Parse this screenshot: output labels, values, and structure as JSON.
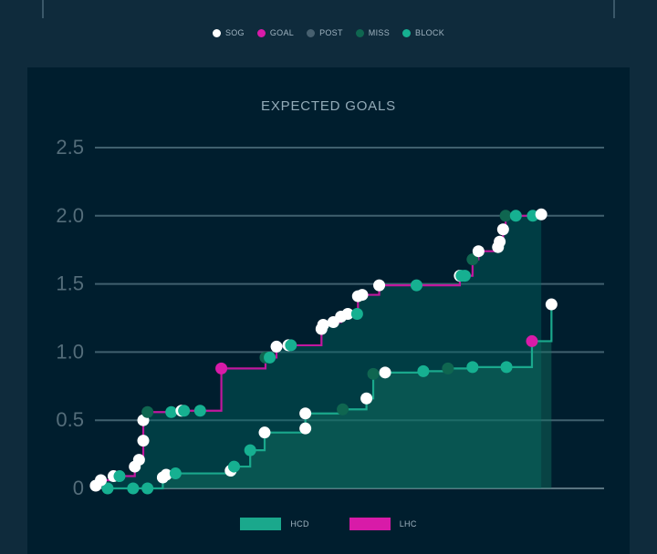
{
  "legend_top": [
    {
      "label": "SOG",
      "color": "#ffffff",
      "icon": "white-dot-icon"
    },
    {
      "label": "GOAL",
      "color": "#d81ba8",
      "icon": "magenta-dot-icon"
    },
    {
      "label": "POST",
      "color": "#47606f",
      "icon": "gray-dot-icon"
    },
    {
      "label": "MISS",
      "color": "#0f6650",
      "icon": "dark-green-dot-icon"
    },
    {
      "label": "BLOCK",
      "color": "#16b091",
      "icon": "teal-dot-icon"
    }
  ],
  "chart_data": {
    "type": "line",
    "title": "EXPECTED GOALS",
    "xlabel": "",
    "ylabel": "",
    "ylim": [
      0,
      2.5
    ],
    "yticks": [
      "0",
      "0.5",
      "1.0",
      "1.5",
      "2.0",
      "2.5"
    ],
    "xlim": [
      0,
      60
    ],
    "series": [
      {
        "name": "HCD",
        "color": "#1aa88c",
        "points": [
          {
            "x": 1.5,
            "y": 0,
            "type": "BLOCK"
          },
          {
            "x": 4.5,
            "y": 0,
            "type": "BLOCK"
          },
          {
            "x": 6.2,
            "y": 0,
            "type": "BLOCK"
          },
          {
            "x": 8.0,
            "y": 0.08,
            "type": "SOG"
          },
          {
            "x": 8.4,
            "y": 0.1,
            "type": "SOG"
          },
          {
            "x": 9.5,
            "y": 0.11,
            "type": "BLOCK"
          },
          {
            "x": 16.0,
            "y": 0.13,
            "type": "SOG"
          },
          {
            "x": 16.4,
            "y": 0.16,
            "type": "BLOCK"
          },
          {
            "x": 18.3,
            "y": 0.28,
            "type": "BLOCK"
          },
          {
            "x": 20.0,
            "y": 0.41,
            "type": "SOG"
          },
          {
            "x": 24.8,
            "y": 0.44,
            "type": "SOG"
          },
          {
            "x": 24.8,
            "y": 0.55,
            "type": "SOG"
          },
          {
            "x": 29.2,
            "y": 0.58,
            "type": "MISS"
          },
          {
            "x": 32.0,
            "y": 0.66,
            "type": "SOG"
          },
          {
            "x": 32.8,
            "y": 0.84,
            "type": "MISS"
          },
          {
            "x": 34.2,
            "y": 0.85,
            "type": "SOG"
          },
          {
            "x": 38.7,
            "y": 0.86,
            "type": "BLOCK"
          },
          {
            "x": 41.6,
            "y": 0.88,
            "type": "MISS"
          },
          {
            "x": 44.5,
            "y": 0.89,
            "type": "BLOCK"
          },
          {
            "x": 48.5,
            "y": 0.89,
            "type": "BLOCK"
          },
          {
            "x": 51.5,
            "y": 1.08,
            "type": "GOAL"
          },
          {
            "x": 53.8,
            "y": 1.35,
            "type": "SOG"
          }
        ]
      },
      {
        "name": "LHC",
        "color": "#d81ba8",
        "points": [
          {
            "x": 0.1,
            "y": 0.02,
            "type": "SOG"
          },
          {
            "x": 0.7,
            "y": 0.06,
            "type": "SOG"
          },
          {
            "x": 2.2,
            "y": 0.09,
            "type": "SOG"
          },
          {
            "x": 2.9,
            "y": 0.09,
            "type": "BLOCK"
          },
          {
            "x": 4.7,
            "y": 0.16,
            "type": "SOG"
          },
          {
            "x": 5.2,
            "y": 0.21,
            "type": "SOG"
          },
          {
            "x": 5.7,
            "y": 0.35,
            "type": "SOG"
          },
          {
            "x": 5.7,
            "y": 0.5,
            "type": "SOG"
          },
          {
            "x": 6.2,
            "y": 0.56,
            "type": "MISS"
          },
          {
            "x": 9.0,
            "y": 0.56,
            "type": "BLOCK"
          },
          {
            "x": 10.2,
            "y": 0.57,
            "type": "SOG"
          },
          {
            "x": 10.5,
            "y": 0.57,
            "type": "BLOCK"
          },
          {
            "x": 12.4,
            "y": 0.57,
            "type": "BLOCK"
          },
          {
            "x": 14.9,
            "y": 0.88,
            "type": "GOAL"
          },
          {
            "x": 20.1,
            "y": 0.96,
            "type": "MISS"
          },
          {
            "x": 20.6,
            "y": 0.96,
            "type": "BLOCK"
          },
          {
            "x": 21.4,
            "y": 1.04,
            "type": "SOG"
          },
          {
            "x": 22.8,
            "y": 1.05,
            "type": "SOG"
          },
          {
            "x": 23.1,
            "y": 1.05,
            "type": "BLOCK"
          },
          {
            "x": 26.7,
            "y": 1.17,
            "type": "SOG"
          },
          {
            "x": 26.9,
            "y": 1.2,
            "type": "SOG"
          },
          {
            "x": 28.1,
            "y": 1.22,
            "type": "SOG"
          },
          {
            "x": 29.0,
            "y": 1.26,
            "type": "SOG"
          },
          {
            "x": 29.8,
            "y": 1.28,
            "type": "SOG"
          },
          {
            "x": 30.9,
            "y": 1.28,
            "type": "BLOCK"
          },
          {
            "x": 31.0,
            "y": 1.41,
            "type": "SOG"
          },
          {
            "x": 31.5,
            "y": 1.42,
            "type": "SOG"
          },
          {
            "x": 33.5,
            "y": 1.49,
            "type": "SOG"
          },
          {
            "x": 37.9,
            "y": 1.49,
            "type": "BLOCK"
          },
          {
            "x": 43.0,
            "y": 1.56,
            "type": "SOG"
          },
          {
            "x": 43.2,
            "y": 1.56,
            "type": "BLOCK"
          },
          {
            "x": 43.6,
            "y": 1.56,
            "type": "BLOCK"
          },
          {
            "x": 44.5,
            "y": 1.68,
            "type": "MISS"
          },
          {
            "x": 45.2,
            "y": 1.74,
            "type": "SOG"
          },
          {
            "x": 47.5,
            "y": 1.77,
            "type": "SOG"
          },
          {
            "x": 47.7,
            "y": 1.81,
            "type": "SOG"
          },
          {
            "x": 48.1,
            "y": 1.9,
            "type": "SOG"
          },
          {
            "x": 48.4,
            "y": 2.0,
            "type": "MISS"
          },
          {
            "x": 49.6,
            "y": 2.0,
            "type": "BLOCK"
          },
          {
            "x": 51.6,
            "y": 2.0,
            "type": "BLOCK"
          },
          {
            "x": 52.6,
            "y": 2.01,
            "type": "SOG"
          }
        ]
      }
    ]
  }
}
